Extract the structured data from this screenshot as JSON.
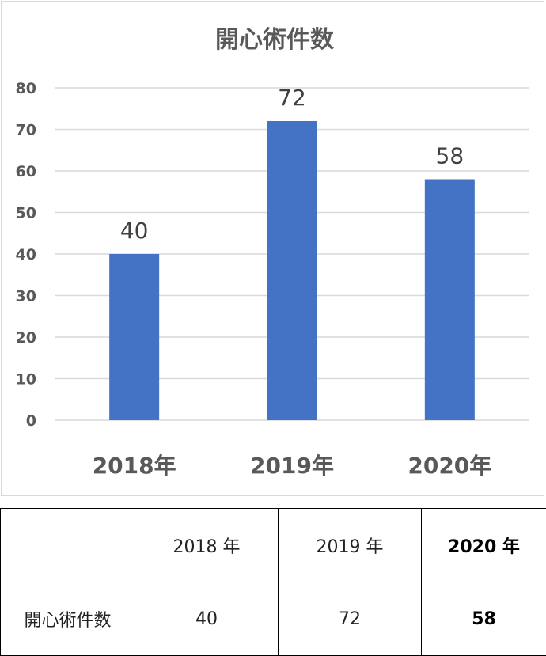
{
  "chart_data": {
    "type": "bar",
    "title": "開心術件数",
    "categories": [
      "2018年",
      "2019年",
      "2020年"
    ],
    "values": [
      40,
      72,
      58
    ],
    "ylim": [
      0,
      80
    ],
    "yticks": [
      0,
      10,
      20,
      30,
      40,
      50,
      60,
      70,
      80
    ],
    "grid": true,
    "bar_color": "#4472c4",
    "xlabel": "",
    "ylabel": ""
  },
  "table": {
    "header": [
      "",
      "2018 年",
      "2019 年",
      "2020 年"
    ],
    "row": [
      "開心術件数",
      "40",
      "72",
      "58"
    ]
  }
}
